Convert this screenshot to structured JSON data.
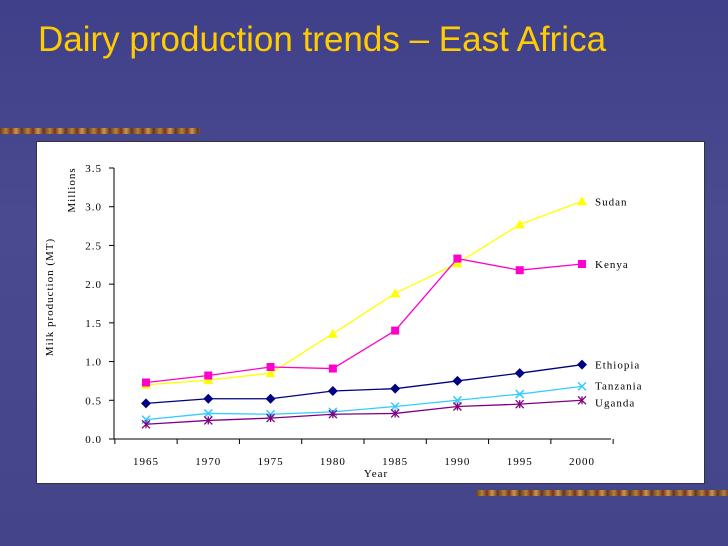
{
  "slide": {
    "title": "Dairy production trends – East Africa"
  },
  "chart_data": {
    "type": "line",
    "ylabel": "Milk production (MT)",
    "yunit": "Millions",
    "xlabel": "Year",
    "ylim": [
      0,
      3.5
    ],
    "yticks": [
      "0.0",
      "0.5",
      "1.0",
      "1.5",
      "2.0",
      "2.5",
      "3.0",
      "3.5"
    ],
    "x": [
      1965,
      1970,
      1975,
      1980,
      1985,
      1990,
      1995,
      2000
    ],
    "xtick_labels": [
      "1965",
      "1970",
      "1975",
      "1980",
      "1985",
      "1990",
      "1995",
      "2000"
    ],
    "grid": false,
    "legend": "end-of-line labels",
    "series": [
      {
        "name": "Sudan",
        "color": "#ffff00",
        "marker": "triangle",
        "values": [
          0.7,
          0.76,
          0.85,
          1.36,
          1.88,
          2.27,
          2.77,
          3.07
        ]
      },
      {
        "name": "Kenya",
        "color": "#ff00cc",
        "marker": "square",
        "values": [
          0.73,
          0.82,
          0.93,
          0.91,
          1.4,
          2.33,
          2.18,
          2.26
        ]
      },
      {
        "name": "Ethiopia",
        "color": "#000080",
        "marker": "diamond",
        "values": [
          0.46,
          0.52,
          0.52,
          0.62,
          0.65,
          0.75,
          0.85,
          0.96
        ]
      },
      {
        "name": "Tanzania",
        "color": "#33ccff",
        "marker": "x",
        "values": [
          0.25,
          0.33,
          0.32,
          0.35,
          0.42,
          0.5,
          0.58,
          0.68
        ]
      },
      {
        "name": "Uganda",
        "color": "#800080",
        "marker": "star",
        "values": [
          0.19,
          0.24,
          0.27,
          0.32,
          0.33,
          0.42,
          0.45,
          0.5
        ]
      }
    ]
  }
}
